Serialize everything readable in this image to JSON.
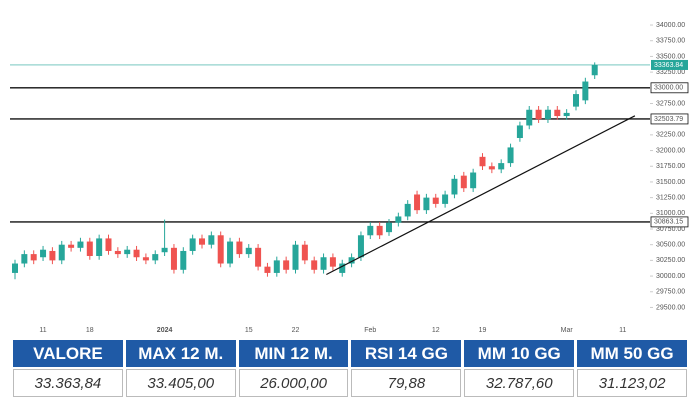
{
  "chart_data": {
    "type": "candlestick",
    "categories": [
      null,
      null,
      null,
      "11",
      null,
      null,
      null,
      null,
      "18",
      null,
      null,
      null,
      null,
      null,
      null,
      null,
      "2024",
      null,
      null,
      null,
      null,
      null,
      null,
      null,
      null,
      "15",
      null,
      null,
      null,
      null,
      "22",
      null,
      null,
      null,
      null,
      null,
      null,
      null,
      "Feb",
      null,
      null,
      null,
      null,
      null,
      null,
      "12",
      null,
      null,
      null,
      null,
      "19",
      null,
      null,
      null,
      null,
      null,
      null,
      null,
      null,
      "Mar",
      null,
      null,
      null,
      null,
      null,
      "11"
    ],
    "open": [
      30050,
      30200,
      30350,
      30300,
      30400,
      30250,
      30500,
      30450,
      30550,
      30320,
      30600,
      30400,
      30350,
      30420,
      30300,
      30250,
      30380,
      30450,
      30100,
      30400,
      30600,
      30500,
      30650,
      30200,
      30550,
      30350,
      30450,
      30150,
      30050,
      30250,
      30100,
      30500,
      30250,
      30100,
      30300,
      30050,
      30200,
      30300,
      30650,
      30800,
      30700,
      30850,
      30950,
      31300,
      31050,
      31250,
      31150,
      31300,
      31600,
      31400,
      31900,
      31750,
      31700,
      31800,
      32200,
      32400,
      32650,
      32500,
      32650,
      32550,
      32700,
      32800,
      33200,
      null,
      null,
      null
    ],
    "high": [
      30260,
      30410,
      30410,
      30480,
      30460,
      30560,
      30560,
      30610,
      30610,
      30660,
      30660,
      30460,
      30480,
      30480,
      30360,
      30410,
      30900,
      30510,
      30460,
      30660,
      30660,
      30710,
      30710,
      30610,
      30610,
      30510,
      30510,
      30210,
      30310,
      30310,
      30560,
      30560,
      30310,
      30360,
      30360,
      30260,
      30360,
      30710,
      30860,
      30860,
      30910,
      31010,
      31210,
      31360,
      31310,
      31310,
      31360,
      31610,
      31660,
      31710,
      31960,
      31810,
      31860,
      32110,
      32460,
      32710,
      32710,
      32710,
      32710,
      32660,
      32960,
      33160,
      33405,
      null,
      null,
      null
    ],
    "low": [
      29950,
      30140,
      30190,
      30240,
      30190,
      30190,
      30390,
      30390,
      30260,
      30260,
      30340,
      30290,
      30290,
      30240,
      30190,
      30190,
      30320,
      30040,
      30040,
      30340,
      30440,
      30440,
      30140,
      30140,
      30290,
      30290,
      30090,
      29990,
      29990,
      30040,
      30040,
      30190,
      30040,
      30040,
      30090,
      29990,
      30140,
      30240,
      30590,
      30590,
      30640,
      30790,
      30890,
      30990,
      30990,
      31090,
      31090,
      31240,
      31340,
      31340,
      31690,
      31640,
      31640,
      31740,
      32140,
      32340,
      32440,
      32440,
      32490,
      32490,
      32640,
      32740,
      33140,
      null,
      null,
      null
    ],
    "close": [
      30200,
      30350,
      30250,
      30420,
      30250,
      30500,
      30450,
      30550,
      30320,
      30600,
      30400,
      30350,
      30420,
      30300,
      30250,
      30350,
      30450,
      30100,
      30400,
      30600,
      30500,
      30650,
      30200,
      30550,
      30350,
      30450,
      30150,
      30050,
      30250,
      30100,
      30500,
      30250,
      30100,
      30300,
      30150,
      30200,
      30300,
      30650,
      30800,
      30650,
      30850,
      30950,
      31150,
      31050,
      31250,
      31150,
      31300,
      31550,
      31400,
      31650,
      31750,
      31700,
      31800,
      32050,
      32400,
      32650,
      32500,
      32650,
      32550,
      32600,
      32900,
      33100,
      33363.84,
      null,
      null,
      null
    ],
    "up_color": "#26a69a",
    "down_color": "#ef5350",
    "ylim": [
      29300,
      34160
    ],
    "yticks": [
      {
        "value": 29500,
        "label": "29500.00"
      },
      {
        "value": 29750,
        "label": "29750.00"
      },
      {
        "value": 30000,
        "label": "30000.00"
      },
      {
        "value": 30250,
        "label": "30250.00"
      },
      {
        "value": 30500,
        "label": "30500.00"
      },
      {
        "value": 30750,
        "label": "30750.00"
      },
      {
        "value": 31000,
        "label": "31000.00"
      },
      {
        "value": 31250,
        "label": "31250.00"
      },
      {
        "value": 31500,
        "label": "31500.00"
      },
      {
        "value": 31750,
        "label": "31750.00"
      },
      {
        "value": 32000,
        "label": "32000.00"
      },
      {
        "value": 32250,
        "label": "32250.00"
      },
      {
        "value": 32750,
        "label": "32750.00"
      },
      {
        "value": 33250,
        "label": "33250.00"
      },
      {
        "value": 33500,
        "label": "33500.00"
      },
      {
        "value": 33750,
        "label": "33750.00"
      },
      {
        "value": 34000,
        "label": "34000.00"
      }
    ],
    "levels": [
      {
        "value": 33000,
        "label": "33000.00"
      },
      {
        "value": 32503.79,
        "label": "32503.79"
      },
      {
        "value": 30863.15,
        "label": "30863.15"
      }
    ],
    "last_price": {
      "value": 33363.84,
      "label": "33363.84",
      "color": "#26a69a"
    },
    "trendline": {
      "x": [
        33.3,
        66.3
      ],
      "y": [
        30025,
        32554
      ]
    }
  },
  "table": {
    "header": [
      "VALORE",
      "MAX 12 M.",
      "MIN 12 M.",
      "RSI 14 GG",
      "MM 10 GG",
      "MM 50 GG"
    ],
    "values": [
      "33.363,84",
      "33.405,00",
      "26.000,00",
      "79,88",
      "32.787,60",
      "31.123,02"
    ]
  }
}
